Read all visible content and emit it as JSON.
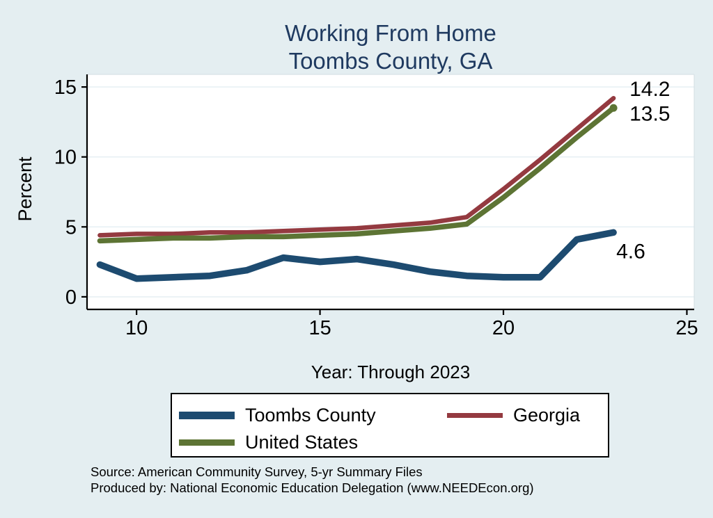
{
  "title": {
    "line1": "Working From Home",
    "line2": "Toombs County, GA"
  },
  "chart_data": {
    "type": "line",
    "x": [
      9,
      10,
      11,
      12,
      13,
      14,
      15,
      16,
      17,
      18,
      19,
      20,
      21,
      22,
      23
    ],
    "series": [
      {
        "name": "Toombs County",
        "color": "#1d4b70",
        "line_width": 9.5,
        "values": [
          2.3,
          1.3,
          1.4,
          1.5,
          1.9,
          2.8,
          2.5,
          2.7,
          2.3,
          1.8,
          1.5,
          1.4,
          1.4,
          4.1,
          4.6
        ],
        "end_label": "4.6",
        "end_marker": false
      },
      {
        "name": "Georgia",
        "color": "#943a40",
        "line_width": 6.5,
        "values": [
          4.4,
          4.5,
          4.5,
          4.6,
          4.6,
          4.7,
          4.8,
          4.9,
          5.1,
          5.3,
          5.7,
          7.7,
          9.8,
          12.0,
          14.2
        ],
        "end_label": "14.2",
        "end_marker": false
      },
      {
        "name": "United States",
        "color": "#5d7434",
        "line_width": 7.5,
        "values": [
          4.0,
          4.1,
          4.2,
          4.2,
          4.3,
          4.3,
          4.4,
          4.5,
          4.7,
          4.9,
          5.2,
          7.1,
          9.2,
          11.4,
          13.5
        ],
        "end_label": "13.5",
        "end_marker": true
      }
    ],
    "title": "Working From Home — Toombs County, GA",
    "xlabel": "Year: Through 2023",
    "ylabel": "Percent",
    "x_ticks": [
      10,
      15,
      20,
      25
    ],
    "y_ticks": [
      0,
      5,
      10,
      15
    ],
    "xlim": [
      8.65,
      25.2
    ],
    "ylim": [
      -0.9,
      15.9
    ],
    "grid": "horizontal",
    "legend_position": "bottom"
  },
  "legend": {
    "items": [
      {
        "label": "Toombs County",
        "color": "#1d4b70",
        "swatch_height": 11
      },
      {
        "label": "Georgia",
        "color": "#943a40",
        "swatch_height": 7
      },
      {
        "label": "United States",
        "color": "#5d7434",
        "swatch_height": 9
      }
    ]
  },
  "footer": {
    "source": "Source: American Community Survey, 5-yr Summary Files",
    "produced_by": "Produced by: National Economic Education Delegation (www.NEEDEcon.org)"
  },
  "colors": {
    "background": "#e4eef1",
    "plot_background": "#ffffff",
    "gridline": "#e7f0f4",
    "axis": "#000000",
    "title_text": "#1f3a60",
    "label_text": "#000000"
  }
}
